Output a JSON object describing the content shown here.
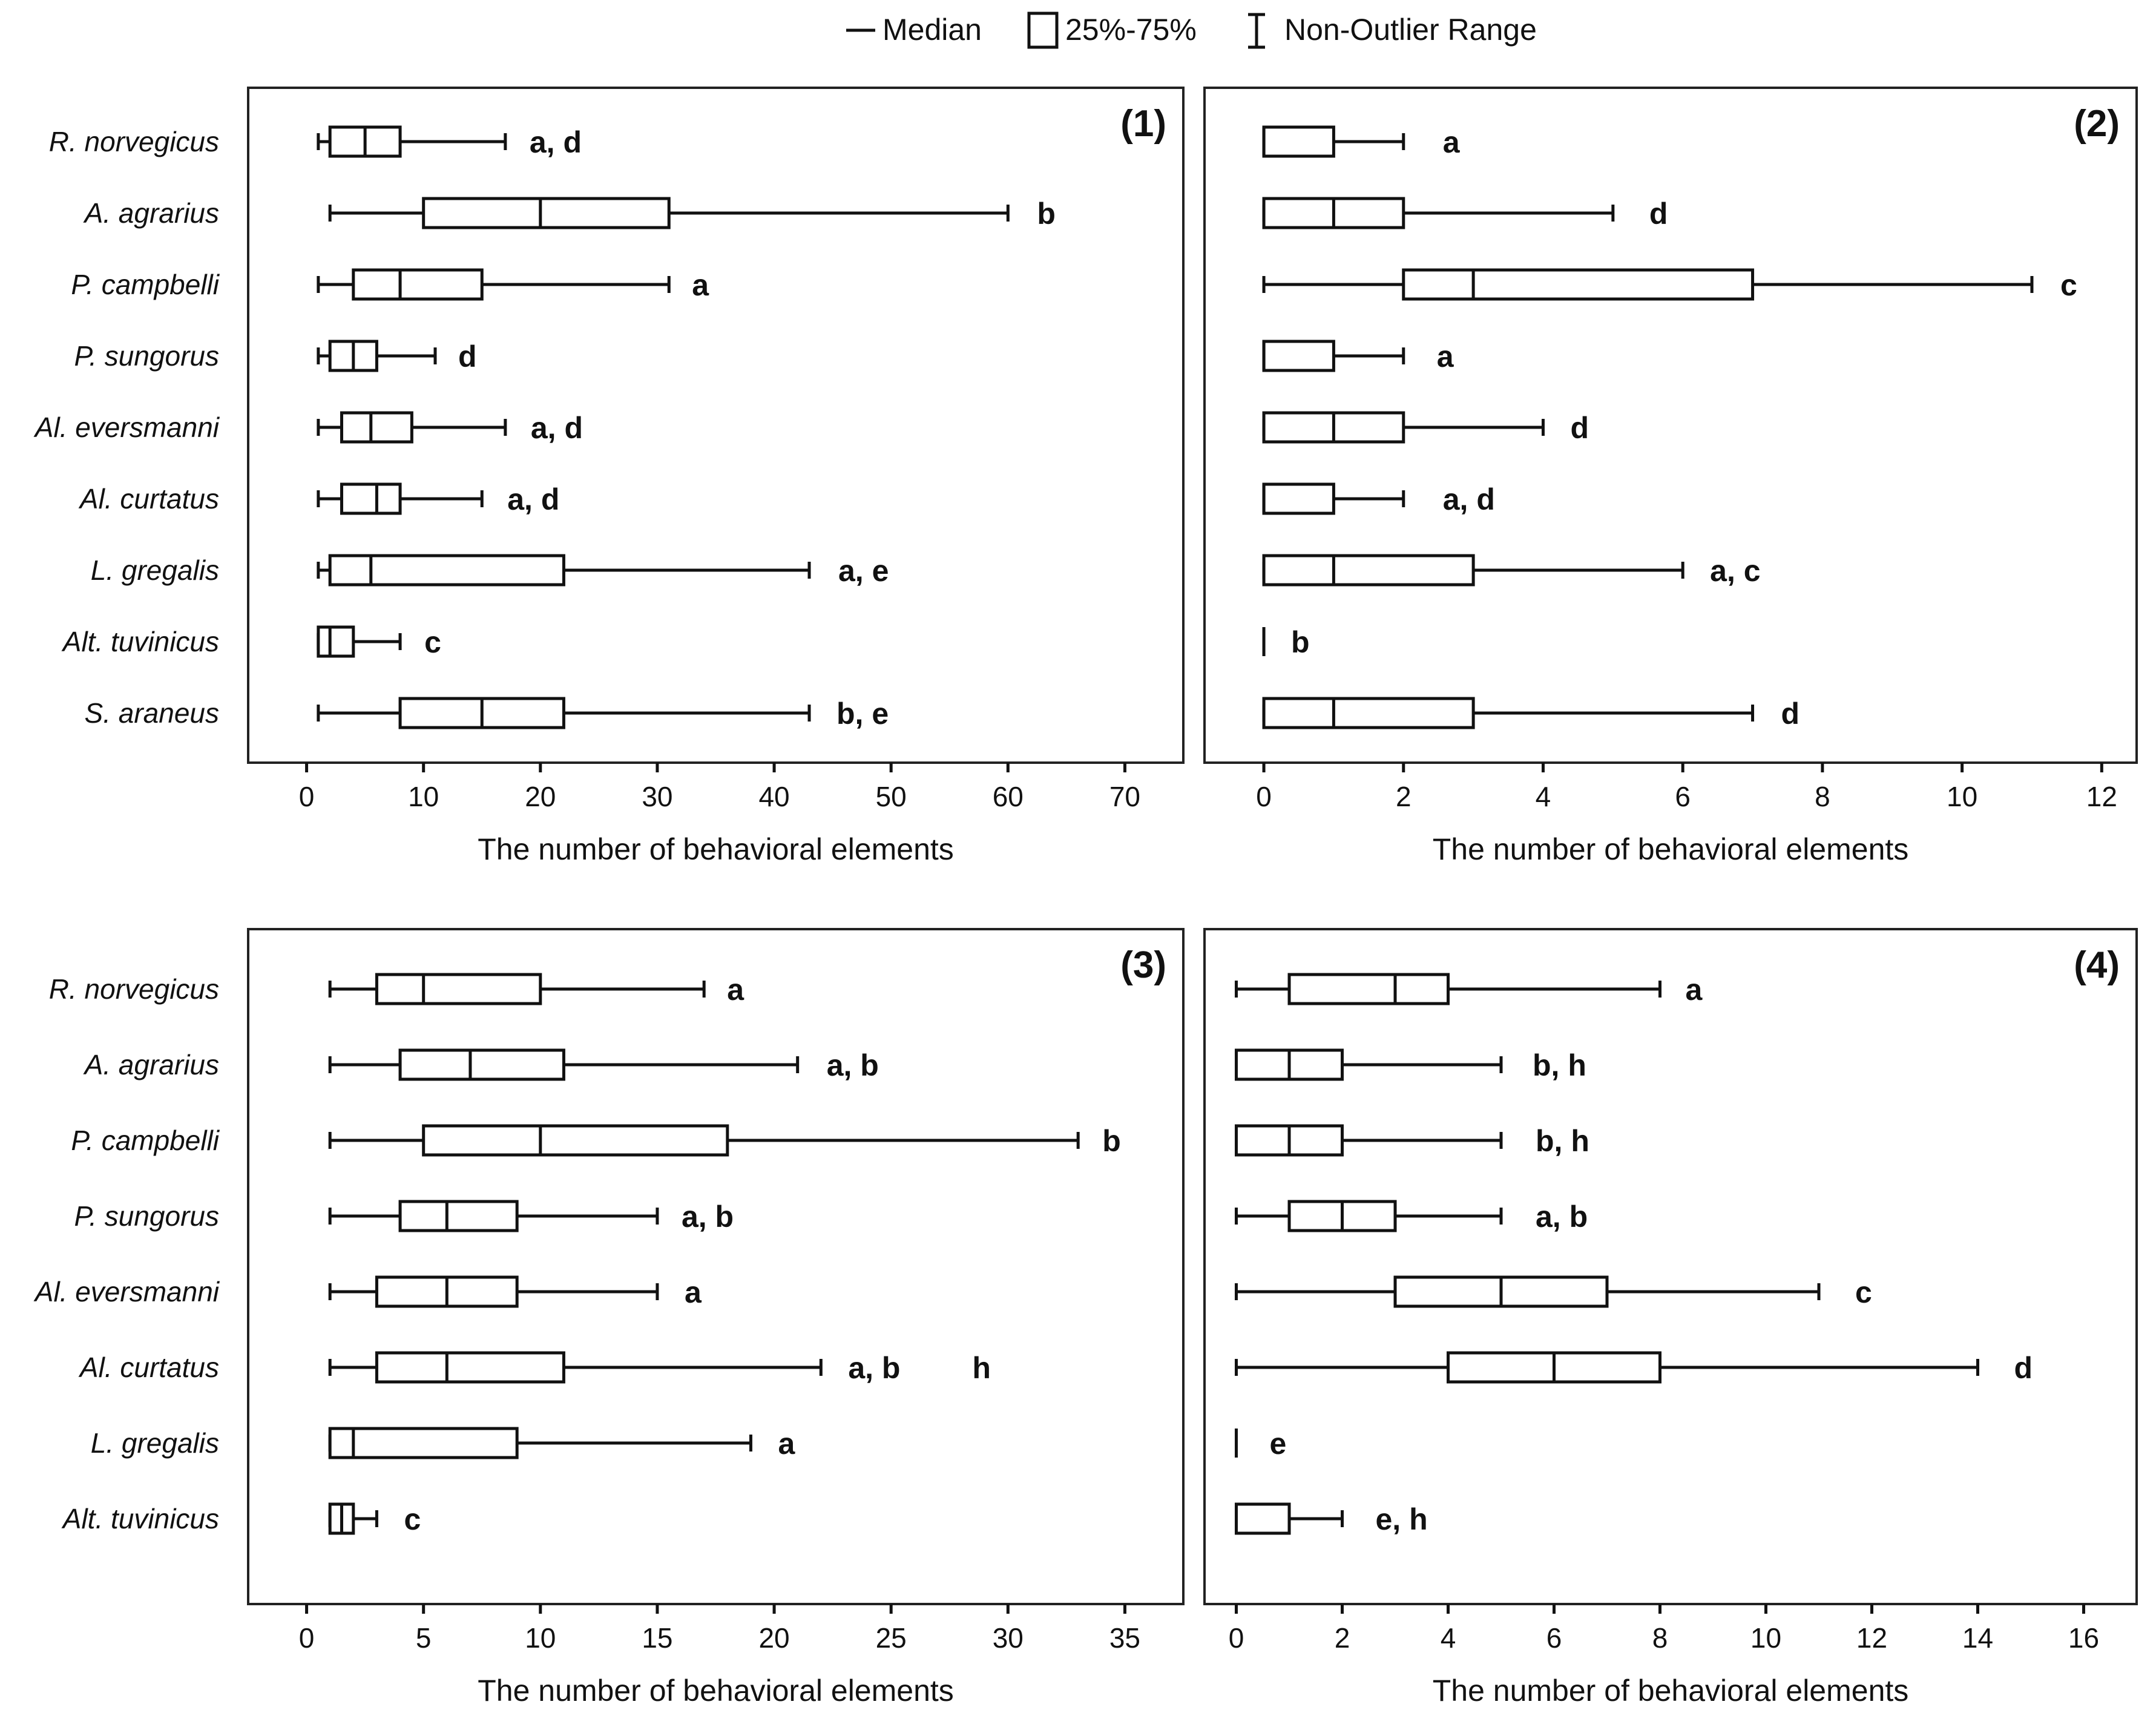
{
  "legend": {
    "median": "Median",
    "box": "25%-75%",
    "whisker": "Non-Outlier Range"
  },
  "chart_data": [
    {
      "type": "boxplot",
      "title": "(1)",
      "xlabel": "The number of behavioral elements",
      "xlim": [
        -5,
        75
      ],
      "xticks": [
        0,
        10,
        20,
        30,
        40,
        50,
        60,
        70
      ],
      "species": [
        {
          "name": "R. norvegicus",
          "min": 1,
          "q1": 2,
          "median": 5,
          "q3": 8,
          "max": 17,
          "letters": "a, d"
        },
        {
          "name": "A. agrarius",
          "min": 2,
          "q1": 10,
          "median": 20,
          "q3": 31,
          "max": 60,
          "letters": "b"
        },
        {
          "name": "P. campbelli",
          "min": 1,
          "q1": 4,
          "median": 8,
          "q3": 15,
          "max": 31,
          "letters": "a"
        },
        {
          "name": "P. sungorus",
          "min": 1,
          "q1": 2,
          "median": 4,
          "q3": 6,
          "max": 11,
          "letters": "d"
        },
        {
          "name": "Al. eversmanni",
          "min": 1,
          "q1": 3,
          "median": 5.5,
          "q3": 9,
          "max": 17,
          "letters": "a, d"
        },
        {
          "name": "Al. curtatus",
          "min": 1,
          "q1": 3,
          "median": 6,
          "q3": 8,
          "max": 15,
          "letters": "a, d"
        },
        {
          "name": "L. gregalis",
          "min": 1,
          "q1": 2,
          "median": 5.5,
          "q3": 22,
          "max": 43,
          "letters": "a, e"
        },
        {
          "name": "Alt. tuvinicus",
          "min": 1,
          "q1": 1,
          "median": 2,
          "q3": 4,
          "max": 8,
          "letters": "c"
        },
        {
          "name": "S. araneus",
          "min": 1,
          "q1": 8,
          "median": 15,
          "q3": 22,
          "max": 43,
          "letters": "b, e"
        }
      ]
    },
    {
      "type": "boxplot",
      "title": "(2)",
      "xlabel": "The number of behavioral elements",
      "xlim": [
        -0.85,
        12.5
      ],
      "xticks": [
        0,
        2,
        4,
        6,
        8,
        10,
        12
      ],
      "species": [
        {
          "name": "R. norvegicus",
          "min": 0,
          "q1": 0,
          "median": 0,
          "q3": 1,
          "max": 2,
          "letters": "a"
        },
        {
          "name": "A. agrarius",
          "min": 0,
          "q1": 0,
          "median": 1,
          "q3": 2,
          "max": 5,
          "letters": "d"
        },
        {
          "name": "P. campbelli",
          "min": 0,
          "q1": 2,
          "median": 3,
          "q3": 7,
          "max": 11,
          "letters": "c"
        },
        {
          "name": "P. sungorus",
          "min": 0,
          "q1": 0,
          "median": 0,
          "q3": 1,
          "max": 2,
          "letters": "a"
        },
        {
          "name": "Al. eversmanni",
          "min": 0,
          "q1": 0,
          "median": 1,
          "q3": 2,
          "max": 4,
          "letters": "d"
        },
        {
          "name": "Al. curtatus",
          "min": 0,
          "q1": 0,
          "median": 0,
          "q3": 1,
          "max": 2,
          "letters": "a, d"
        },
        {
          "name": "L. gregalis",
          "min": 0,
          "q1": 0,
          "median": 1,
          "q3": 3,
          "max": 6,
          "letters": "a, c"
        },
        {
          "name": "Alt. tuvinicus",
          "min": 0,
          "q1": 0,
          "median": 0,
          "q3": 0,
          "max": 0,
          "letters": "b"
        },
        {
          "name": "S. araneus",
          "min": 0,
          "q1": 0,
          "median": 1,
          "q3": 3,
          "max": 7,
          "letters": "d"
        }
      ]
    },
    {
      "type": "boxplot",
      "title": "(3)",
      "xlabel": "The number of behavioral elements",
      "xlim": [
        -2.5,
        37.5
      ],
      "xticks": [
        0,
        5,
        10,
        15,
        20,
        25,
        30,
        35
      ],
      "species": [
        {
          "name": "R. norvegicus",
          "min": 1,
          "q1": 3,
          "median": 5,
          "q3": 10,
          "max": 17,
          "letters": "a"
        },
        {
          "name": "A. agrarius",
          "min": 1,
          "q1": 4,
          "median": 7,
          "q3": 11,
          "max": 21,
          "letters": "a, b"
        },
        {
          "name": "P. campbelli",
          "min": 1,
          "q1": 5,
          "median": 10,
          "q3": 18,
          "max": 33,
          "letters": "b"
        },
        {
          "name": "P. sungorus",
          "min": 1,
          "q1": 4,
          "median": 6,
          "q3": 9,
          "max": 15,
          "letters": "a, b"
        },
        {
          "name": "Al. eversmanni",
          "min": 1,
          "q1": 3,
          "median": 6,
          "q3": 9,
          "max": 15,
          "letters": "a"
        },
        {
          "name": "Al. curtatus",
          "min": 1,
          "q1": 3,
          "median": 6,
          "q3": 11,
          "max": 22,
          "letters": "a, b",
          "extra": "h"
        },
        {
          "name": "L. gregalis",
          "min": 1,
          "q1": 1,
          "median": 2,
          "q3": 9,
          "max": 19,
          "letters": "a"
        },
        {
          "name": "Alt. tuvinicus",
          "min": 1,
          "q1": 1,
          "median": 1.5,
          "q3": 2,
          "max": 3,
          "letters": "c"
        }
      ]
    },
    {
      "type": "boxplot",
      "title": "(4)",
      "xlabel": "The number of behavioral elements",
      "xlim": [
        -0.6,
        17
      ],
      "xticks": [
        0,
        2,
        4,
        6,
        8,
        10,
        12,
        14,
        16
      ],
      "species": [
        {
          "name": "",
          "min": 0,
          "q1": 1,
          "median": 3,
          "q3": 4,
          "max": 8,
          "letters": "a"
        },
        {
          "name": "",
          "min": 0,
          "q1": 0,
          "median": 1,
          "q3": 2,
          "max": 5,
          "letters": "b, h"
        },
        {
          "name": "",
          "min": 0,
          "q1": 0,
          "median": 1,
          "q3": 2,
          "max": 5,
          "letters": "b, h"
        },
        {
          "name": "",
          "min": 0,
          "q1": 1,
          "median": 2,
          "q3": 3,
          "max": 5,
          "letters": "a, b"
        },
        {
          "name": "",
          "min": 0,
          "q1": 3,
          "median": 5,
          "q3": 7,
          "max": 11,
          "letters": "c"
        },
        {
          "name": "",
          "min": 0,
          "q1": 4,
          "median": 6,
          "q3": 8,
          "max": 14,
          "letters": "d"
        },
        {
          "name": "",
          "min": 0,
          "q1": 0,
          "median": 0,
          "q3": 0,
          "max": 0,
          "letters": "e"
        },
        {
          "name": "",
          "min": 0,
          "q1": 0,
          "median": 0,
          "q3": 1,
          "max": 2,
          "letters": "e, h"
        }
      ]
    }
  ]
}
